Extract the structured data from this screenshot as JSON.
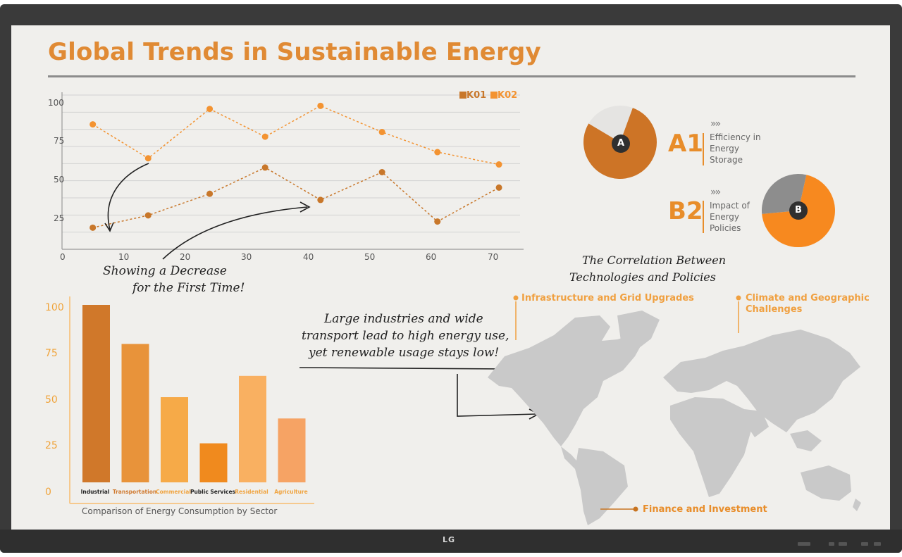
{
  "title": "Global Trends in Sustainable Energy",
  "brand": "LG",
  "colors": {
    "accent": "#e08a34",
    "series_k01": "#c8772a",
    "series_k02": "#f39331",
    "bezel": "#3a3a3a",
    "screen": "#f0efec"
  },
  "chart_data": [
    {
      "type": "line",
      "xlim": [
        0,
        75
      ],
      "ylim": [
        0,
        100
      ],
      "x_ticks": [
        "10",
        "20",
        "30",
        "40",
        "50",
        "60",
        "70"
      ],
      "y_ticks": [
        "25",
        "50",
        "75",
        "100"
      ],
      "x_origin_label": "0",
      "grid": true,
      "legend_position": "top-right",
      "series": [
        {
          "name": "K01",
          "x": [
            5,
            14,
            24,
            33,
            42,
            52,
            61,
            71
          ],
          "values": [
            14,
            22,
            36,
            53,
            32,
            50,
            18,
            40
          ]
        },
        {
          "name": "K02",
          "x": [
            5,
            14,
            24,
            33,
            42,
            52,
            61,
            71
          ],
          "values": [
            81,
            59,
            91,
            73,
            93,
            76,
            63,
            55
          ]
        }
      ]
    },
    {
      "type": "bar",
      "categories": [
        "Industrial",
        "Transportation",
        "Commercial",
        "Public Services",
        "Residential",
        "Agriculture"
      ],
      "values": [
        100,
        78,
        48,
        22,
        60,
        36
      ],
      "ylim": [
        0,
        100
      ],
      "y_ticks": [
        "0",
        "25",
        "50",
        "75",
        "100"
      ],
      "title": "Comparison of Energy Consumption by Sector",
      "bar_colors": [
        "#d0782a",
        "#e8933a",
        "#f6aa48",
        "#f08a1e",
        "#f9b061",
        "#f6a364"
      ],
      "label_colors": [
        "#222222",
        "#d07a30",
        "#f0a440",
        "#222222",
        "#f0a440",
        "#f0a440"
      ]
    },
    {
      "type": "pie",
      "label": "A",
      "values": [
        78,
        22
      ],
      "colors": [
        "#cd7426",
        "#e5e4e2"
      ]
    },
    {
      "type": "pie",
      "label": "B",
      "values": [
        70,
        30
      ],
      "colors": [
        "#f7891f",
        "#8d8d8d"
      ]
    }
  ],
  "annotations": {
    "decrease": [
      "Showing a Decrease",
      "for the First Time!"
    ],
    "industries": [
      "Large industries and wide",
      "transport lead to high energy use,",
      "yet renewable usage stays low!"
    ],
    "correlation": [
      "The Correlation Between",
      "Technologies and Policies"
    ]
  },
  "pies": {
    "a": {
      "code": "A1",
      "chevrons": "»»",
      "text": [
        "Efficiency in",
        "Energy",
        "Storage"
      ]
    },
    "b": {
      "code": "B2",
      "chevrons": "»»",
      "text": [
        "Impact of",
        "Energy",
        "Policies"
      ]
    }
  },
  "map": {
    "labels": {
      "infrastructure": "Infrastructure and Grid Upgrades",
      "climate": [
        "Climate and Geographic",
        "Challenges"
      ],
      "finance": "Finance and Investment"
    }
  }
}
